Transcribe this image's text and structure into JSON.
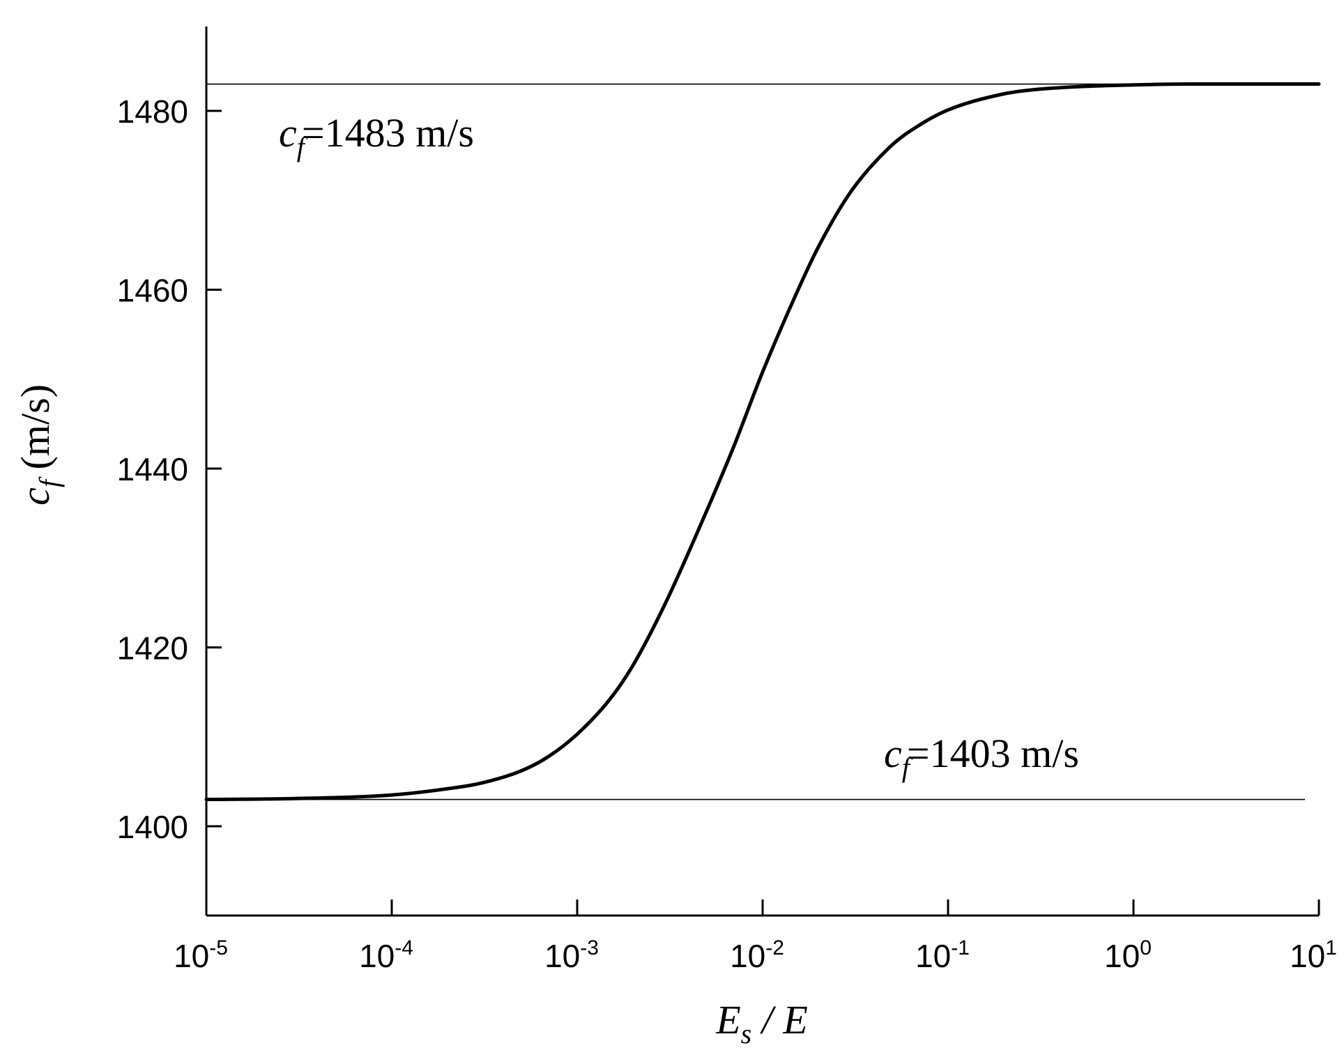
{
  "chart_data": {
    "type": "line",
    "xscale": "log",
    "xlim": [
      1e-05,
      10
    ],
    "ylim": [
      1390,
      1490
    ],
    "grid": false,
    "xlabel": {
      "main": "E",
      "sub": "s",
      "rest": " / E"
    },
    "ylabel": {
      "main": "c",
      "sub": "f",
      "rest": " (m/s)"
    },
    "xticks": [
      {
        "value": 1e-05,
        "base": "10",
        "exp": "-5"
      },
      {
        "value": 0.0001,
        "base": "10",
        "exp": "-4"
      },
      {
        "value": 0.001,
        "base": "10",
        "exp": "-3"
      },
      {
        "value": 0.01,
        "base": "10",
        "exp": "-2"
      },
      {
        "value": 0.1,
        "base": "10",
        "exp": "-1"
      },
      {
        "value": 1,
        "base": "10",
        "exp": "0"
      },
      {
        "value": 10,
        "base": "10",
        "exp": "1"
      }
    ],
    "yticks": [
      {
        "value": 1400,
        "label": "1400"
      },
      {
        "value": 1420,
        "label": "1420"
      },
      {
        "value": 1440,
        "label": "1440"
      },
      {
        "value": 1460,
        "label": "1460"
      },
      {
        "value": 1480,
        "label": "1480"
      }
    ],
    "reference_lines": [
      {
        "y": 1483,
        "x_start": 1e-05,
        "x_end": 10,
        "label_main": "c",
        "label_sub": "f",
        "label_rest": "=1483 m/s"
      },
      {
        "y": 1403,
        "x_start": 1e-05,
        "x_end": 10,
        "label_main": "c",
        "label_sub": "f",
        "label_rest": "=1403 m/s"
      }
    ],
    "series": [
      {
        "x": [
          1e-05,
          3e-05,
          0.0001,
          0.0002,
          0.0003,
          0.0005,
          0.0007,
          0.001,
          0.0015,
          0.002,
          0.003,
          0.005,
          0.007,
          0.01,
          0.015,
          0.02,
          0.03,
          0.05,
          0.07,
          0.1,
          0.2,
          0.3,
          0.5,
          1,
          2,
          10
        ],
        "y": [
          1403.0,
          1403.1,
          1403.5,
          1404.2,
          1404.8,
          1406.2,
          1407.8,
          1410.3,
          1414.2,
          1418.0,
          1425.0,
          1435.3,
          1442.5,
          1450.8,
          1459.3,
          1464.8,
          1471.0,
          1476.2,
          1478.4,
          1480.1,
          1481.9,
          1482.4,
          1482.7,
          1482.9,
          1483.0,
          1483.0
        ]
      }
    ]
  }
}
